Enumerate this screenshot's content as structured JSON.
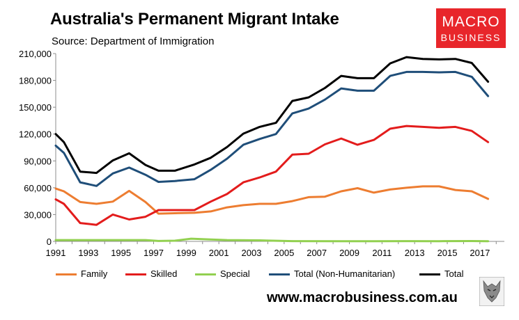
{
  "header": {
    "title": "Australia's Permanent Migrant Intake",
    "subtitle": "Source: Department of Immigration"
  },
  "logo": {
    "line1": "MACRO",
    "line2": "BUSINESS",
    "color": "#e8262b",
    "icon": "wolf-icon"
  },
  "footer": {
    "url": "www.macrobusiness.com.au"
  },
  "chart_data": {
    "type": "line",
    "title": "Australia's Permanent Migrant Intake",
    "subtitle": "Source: Department of Immigration",
    "xlabel": "",
    "ylabel": "",
    "x": [
      1991,
      1992,
      1993,
      1994,
      1995,
      1996,
      1997,
      1998,
      1999,
      2000,
      2001,
      2002,
      2003,
      2004,
      2005,
      2006,
      2007,
      2008,
      2009,
      2010,
      2011,
      2012,
      2013,
      2014,
      2015,
      2016,
      2017,
      2018
    ],
    "xlim": [
      1991,
      2018
    ],
    "xticks": [
      "1991",
      "1993",
      "1995",
      "1997",
      "1999",
      "2001",
      "2003",
      "2005",
      "2007",
      "2009",
      "2011",
      "2013",
      "2015",
      "2017"
    ],
    "ylim": [
      0,
      210000
    ],
    "yticks": [
      "0",
      "30,000",
      "60,000",
      "90,000",
      "120,000",
      "150,000",
      "180,000",
      "210,000"
    ],
    "grid": false,
    "legend_position": "bottom",
    "series": [
      {
        "name": "Family",
        "color": "#ed7d31",
        "points": [
          [
            1991,
            59000
          ],
          [
            1991.5,
            56000
          ],
          [
            1992.5,
            44000
          ],
          [
            1993.5,
            42000
          ],
          [
            1994.5,
            44500
          ],
          [
            1995.5,
            56500
          ],
          [
            1996.5,
            44000
          ],
          [
            1997.3,
            31000
          ],
          [
            1998.3,
            31500
          ],
          [
            1999.5,
            32000
          ],
          [
            2000.5,
            33500
          ],
          [
            2001.5,
            38000
          ],
          [
            2002.5,
            40500
          ],
          [
            2003.5,
            42000
          ],
          [
            2004.5,
            42000
          ],
          [
            2005.5,
            45000
          ],
          [
            2006.5,
            49500
          ],
          [
            2007.5,
            50000
          ],
          [
            2008.5,
            56000
          ],
          [
            2009.5,
            59500
          ],
          [
            2010.5,
            54500
          ],
          [
            2011.5,
            58000
          ],
          [
            2012.5,
            60000
          ],
          [
            2013.5,
            61500
          ],
          [
            2014.5,
            61500
          ],
          [
            2015.5,
            57500
          ],
          [
            2016.5,
            56000
          ],
          [
            2017.5,
            47500
          ]
        ]
      },
      {
        "name": "Skilled",
        "color": "#e31c1c",
        "points": [
          [
            1991,
            47000
          ],
          [
            1991.5,
            42000
          ],
          [
            1992.5,
            20500
          ],
          [
            1993.5,
            18500
          ],
          [
            1994.5,
            30000
          ],
          [
            1995.5,
            24500
          ],
          [
            1996.5,
            27500
          ],
          [
            1997.3,
            35000
          ],
          [
            1998.3,
            35000
          ],
          [
            1999.5,
            35000
          ],
          [
            2000.5,
            44500
          ],
          [
            2001.5,
            53000
          ],
          [
            2002.5,
            66000
          ],
          [
            2003.5,
            71500
          ],
          [
            2004.5,
            78000
          ],
          [
            2005.5,
            97000
          ],
          [
            2006.5,
            98000
          ],
          [
            2007.5,
            108500
          ],
          [
            2008.5,
            115000
          ],
          [
            2009.5,
            108000
          ],
          [
            2010.5,
            113500
          ],
          [
            2011.5,
            126000
          ],
          [
            2012.5,
            129000
          ],
          [
            2013.5,
            128000
          ],
          [
            2014.5,
            127000
          ],
          [
            2015.5,
            128000
          ],
          [
            2016.5,
            123500
          ],
          [
            2017.5,
            111000
          ]
        ]
      },
      {
        "name": "Special",
        "color": "#92d050",
        "points": [
          [
            1991,
            1500
          ],
          [
            1992.5,
            1500
          ],
          [
            1994.5,
            1500
          ],
          [
            1996.5,
            1500
          ],
          [
            1997.3,
            500
          ],
          [
            1998.3,
            800
          ],
          [
            1999.3,
            3000
          ],
          [
            2000.5,
            2200
          ],
          [
            2001.5,
            1500
          ],
          [
            2003.5,
            1200
          ],
          [
            2005.5,
            300
          ],
          [
            2008.5,
            200
          ],
          [
            2010.5,
            200
          ],
          [
            2012.5,
            300
          ],
          [
            2014.5,
            200
          ],
          [
            2016.5,
            400
          ],
          [
            2017.5,
            200
          ]
        ]
      },
      {
        "name": "Total (Non-Humanitarian)",
        "color": "#1f4e79",
        "points": [
          [
            1991,
            107000
          ],
          [
            1991.5,
            99000
          ],
          [
            1992.5,
            66000
          ],
          [
            1993.5,
            62000
          ],
          [
            1994.5,
            76000
          ],
          [
            1995.5,
            82500
          ],
          [
            1996.5,
            74500
          ],
          [
            1997.3,
            66500
          ],
          [
            1998.3,
            67500
          ],
          [
            1999.5,
            69500
          ],
          [
            2000.5,
            80000
          ],
          [
            2001.5,
            92500
          ],
          [
            2002.5,
            108000
          ],
          [
            2003.5,
            114500
          ],
          [
            2004.5,
            120000
          ],
          [
            2005.5,
            143000
          ],
          [
            2006.5,
            148500
          ],
          [
            2007.5,
            158500
          ],
          [
            2008.5,
            171000
          ],
          [
            2009.5,
            168500
          ],
          [
            2010.5,
            168500
          ],
          [
            2011.5,
            185000
          ],
          [
            2012.5,
            189500
          ],
          [
            2013.5,
            189500
          ],
          [
            2014.5,
            189000
          ],
          [
            2015.5,
            189500
          ],
          [
            2016.5,
            184000
          ],
          [
            2017.5,
            162500
          ]
        ]
      },
      {
        "name": "Total",
        "color": "#000000",
        "points": [
          [
            1991,
            120000
          ],
          [
            1991.5,
            111000
          ],
          [
            1992.5,
            78000
          ],
          [
            1993.5,
            76500
          ],
          [
            1994.5,
            90500
          ],
          [
            1995.5,
            98500
          ],
          [
            1996.5,
            85500
          ],
          [
            1997.3,
            79000
          ],
          [
            1998.3,
            79000
          ],
          [
            1999.5,
            86000
          ],
          [
            2000.5,
            93500
          ],
          [
            2001.5,
            105500
          ],
          [
            2002.5,
            120500
          ],
          [
            2003.5,
            128000
          ],
          [
            2004.5,
            132500
          ],
          [
            2005.5,
            157000
          ],
          [
            2006.5,
            161000
          ],
          [
            2007.5,
            171500
          ],
          [
            2008.5,
            185000
          ],
          [
            2009.5,
            182500
          ],
          [
            2010.5,
            182500
          ],
          [
            2011.5,
            199000
          ],
          [
            2012.5,
            206000
          ],
          [
            2013.5,
            204000
          ],
          [
            2014.5,
            203500
          ],
          [
            2015.5,
            204000
          ],
          [
            2016.5,
            199500
          ],
          [
            2017.5,
            178500
          ]
        ]
      }
    ]
  }
}
